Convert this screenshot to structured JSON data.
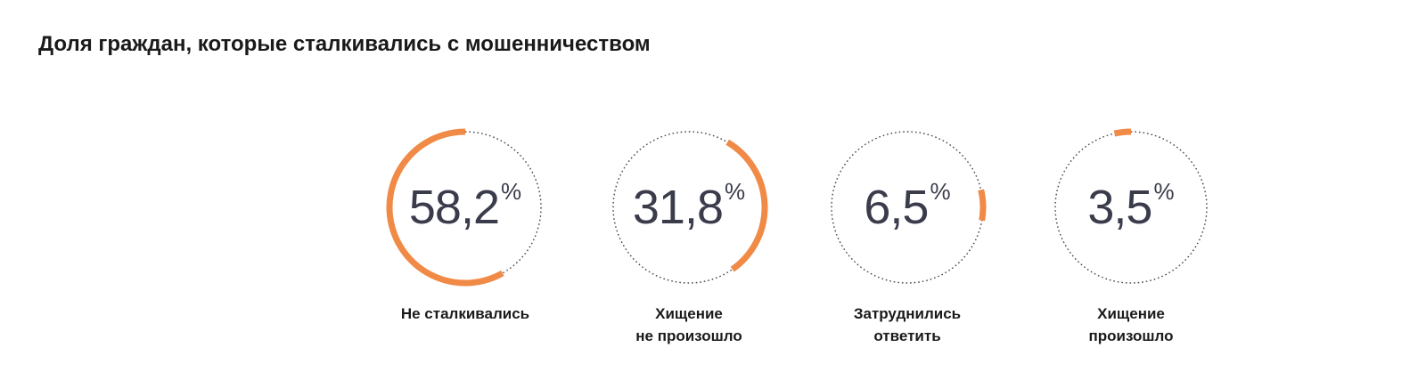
{
  "title": "Доля граждан, которые сталкивались с мошенничеством",
  "colors": {
    "accent": "#f08a46",
    "ring_dotted": "#444444",
    "value_text": "#3a3c4c",
    "label_text": "#1a1a1a"
  },
  "chart_data": {
    "type": "pie",
    "title": "Доля граждан, которые сталкивались с мошенничеством",
    "items": [
      {
        "value_text": "58,2",
        "pct_symbol": "%",
        "label": "Не сталкивались",
        "share": 0.582,
        "start_angle_deg": 0
      },
      {
        "value_text": "31,8",
        "pct_symbol": "%",
        "label": "Хищение\nне произошло",
        "share": 0.318,
        "start_angle_deg": 145
      },
      {
        "value_text": "6,5",
        "pct_symbol": "%",
        "label": "Затруднились\nответить",
        "share": 0.065,
        "start_angle_deg": 100
      },
      {
        "value_text": "3,5",
        "pct_symbol": "%",
        "label": "Хищение\nпроизошло",
        "share": 0.035,
        "start_angle_deg": 0
      }
    ]
  }
}
